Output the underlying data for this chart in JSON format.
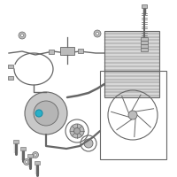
{
  "bg_color": "#ffffff",
  "part_color": "#999999",
  "part_color_dark": "#666666",
  "part_color_light": "#bbbbbb",
  "highlight_color": "#2ab0c8",
  "line_color": "#777777",
  "fig_width": 2.0,
  "fig_height": 2.0,
  "dpi": 100
}
